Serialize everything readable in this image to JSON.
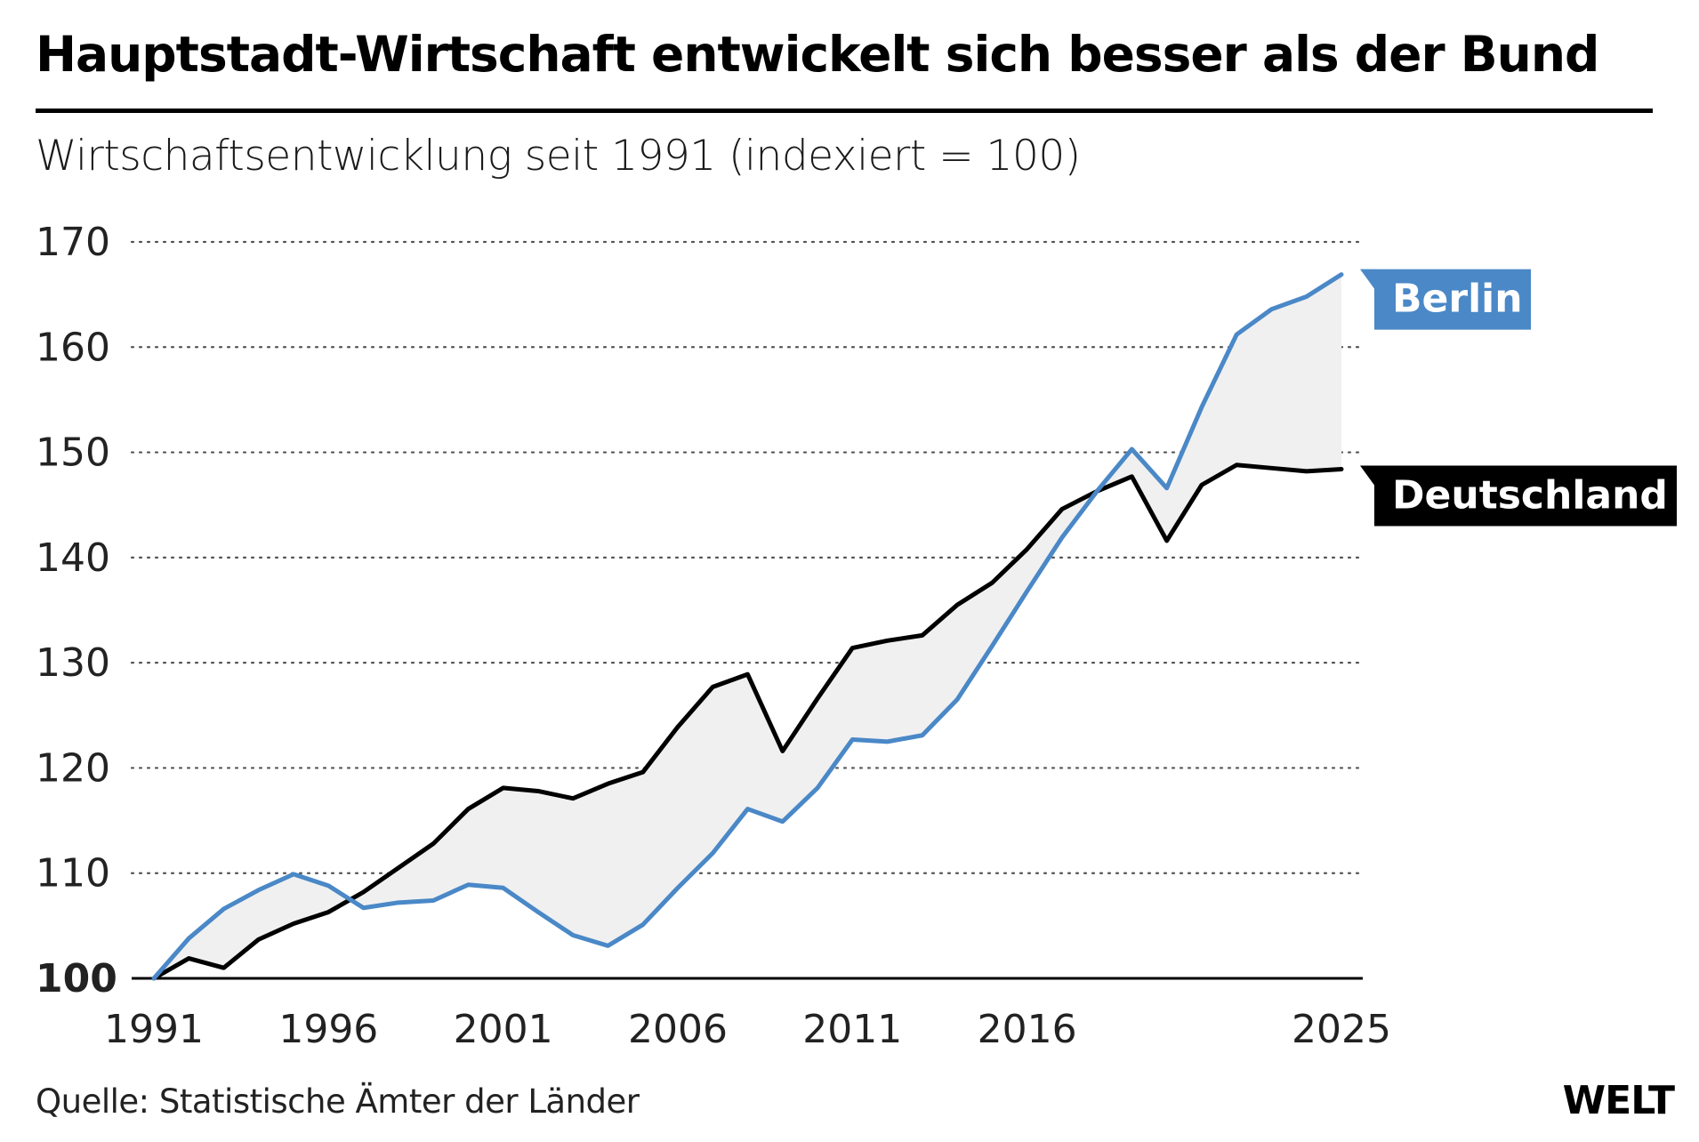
{
  "header": {
    "title": "Hauptstadt-Wirtschaft entwickelt sich besser als der Bund",
    "subtitle": "Wirtschaftsentwicklung seit 1991 (indexiert = 100)"
  },
  "footer": {
    "source": "Quelle: Statistische Ämter der Länder",
    "logo": "WELT"
  },
  "colors": {
    "berlin": "#4a88c7",
    "deutschland": "#000000",
    "fill": "#f0f0f0"
  },
  "chart_data": {
    "type": "line",
    "title": "Hauptstadt-Wirtschaft entwickelt sich besser als der Bund",
    "subtitle": "Wirtschaftsentwicklung seit 1991 (indexiert = 100)",
    "xlabel": "",
    "ylabel": "",
    "ylim": [
      100,
      170
    ],
    "xlim": [
      1991,
      2025
    ],
    "y_ticks": [
      "100",
      "110",
      "120",
      "130",
      "140",
      "150",
      "160",
      "170"
    ],
    "x_ticks": [
      "1991",
      "1996",
      "2001",
      "2006",
      "2011",
      "2016",
      "2025"
    ],
    "grid": "dotted horizontal",
    "x": [
      1991,
      1992,
      1993,
      1994,
      1995,
      1996,
      1997,
      1998,
      1999,
      2000,
      2001,
      2002,
      2003,
      2004,
      2005,
      2006,
      2007,
      2008,
      2009,
      2010,
      2011,
      2012,
      2013,
      2014,
      2015,
      2016,
      2017,
      2018,
      2019,
      2020,
      2021,
      2022,
      2023,
      2024,
      2025
    ],
    "series": [
      {
        "name": "Berlin",
        "label": "Berlin",
        "values": [
          100.0,
          103.8,
          106.6,
          108.4,
          109.9,
          108.8,
          106.7,
          107.2,
          107.4,
          108.9,
          108.6,
          106.3,
          104.1,
          103.1,
          105.1,
          108.6,
          111.9,
          116.1,
          114.9,
          118.1,
          122.7,
          122.5,
          123.1,
          126.5,
          131.6,
          136.8,
          141.9,
          146.3,
          150.3,
          146.6,
          154.3,
          161.2,
          163.6,
          164.8,
          166.9
        ]
      },
      {
        "name": "Deutschland",
        "label": "Deutschland",
        "values": [
          100.0,
          101.9,
          101.0,
          103.7,
          105.2,
          106.3,
          108.2,
          110.5,
          112.8,
          116.1,
          118.1,
          117.8,
          117.1,
          118.5,
          119.6,
          123.9,
          127.7,
          128.9,
          121.6,
          126.6,
          131.4,
          132.1,
          132.6,
          135.5,
          137.6,
          140.8,
          144.6,
          146.3,
          147.7,
          141.6,
          146.9,
          148.8,
          148.5,
          148.2,
          148.4
        ]
      }
    ]
  }
}
